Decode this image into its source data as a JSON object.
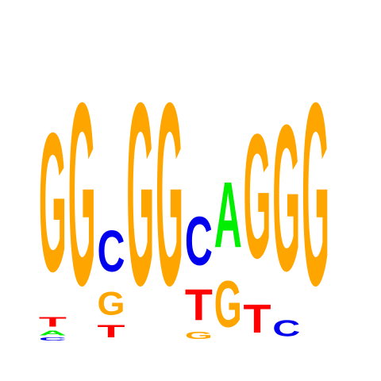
{
  "chart_data": {
    "type": "sequence-logo",
    "colors": {
      "A": "#00ee00",
      "C": "#0000ee",
      "G": "#ffa500",
      "T": "#ff0000"
    },
    "positions": [
      {
        "stack": [
          {
            "base": "C",
            "height": 0.06
          },
          {
            "base": "A",
            "height": 0.09
          },
          {
            "base": "T",
            "height": 0.2
          },
          {
            "base": "G",
            "height": 2.85
          }
        ]
      },
      {
        "stack": [
          {
            "base": "G",
            "height": 3.75
          }
        ]
      },
      {
        "stack": [
          {
            "base": "T",
            "height": 0.25
          },
          {
            "base": "G",
            "height": 0.48
          },
          {
            "base": "C",
            "height": 0.85
          }
        ]
      },
      {
        "stack": [
          {
            "base": "G",
            "height": 3.75
          }
        ]
      },
      {
        "stack": [
          {
            "base": "G",
            "height": 3.75
          }
        ]
      },
      {
        "stack": [
          {
            "base": "G",
            "height": 0.15
          },
          {
            "base": "T",
            "height": 0.64
          },
          {
            "base": "C",
            "height": 1.0
          }
        ]
      },
      {
        "stack": [
          {
            "base": "G",
            "height": 0.95
          },
          {
            "base": "A",
            "height": 1.35
          }
        ]
      },
      {
        "stack": [
          {
            "base": "T",
            "height": 0.58
          },
          {
            "base": "G",
            "height": 2.55
          }
        ]
      },
      {
        "stack": [
          {
            "base": "C",
            "height": 0.33
          },
          {
            "base": "G",
            "height": 3.0
          }
        ]
      },
      {
        "stack": [
          {
            "base": "G",
            "height": 3.75
          }
        ]
      }
    ]
  }
}
